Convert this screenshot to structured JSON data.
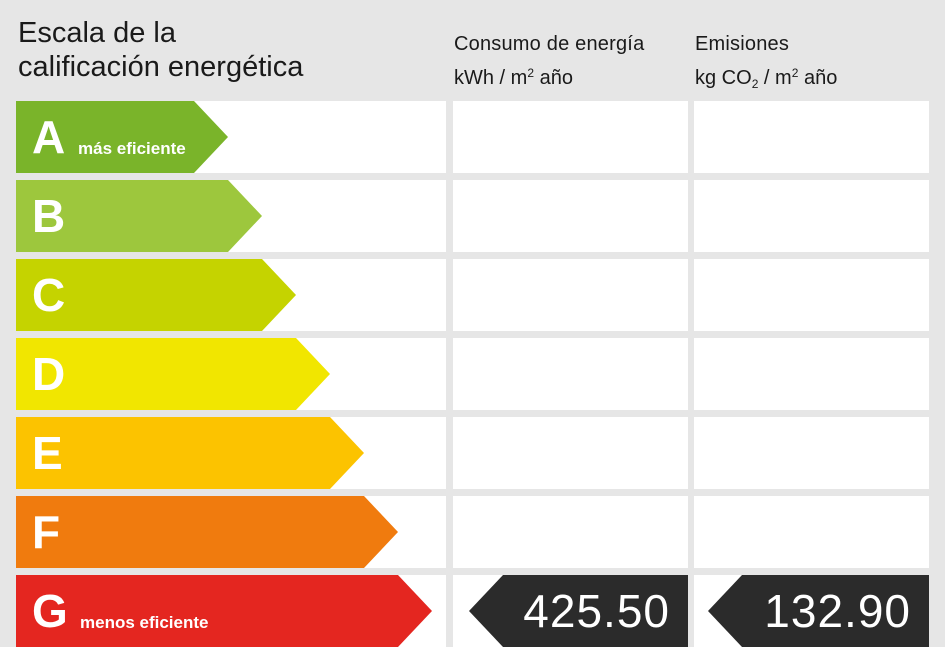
{
  "title": {
    "line1": "Escala de la",
    "line2": "calificación energética"
  },
  "columns": {
    "consumo": {
      "line1": "Consumo de energía",
      "line2_pre": "kWh / m",
      "line2_sup": "2",
      "line2_post": " año"
    },
    "emisiones": {
      "line1": "Emisiones",
      "line2_pre": "kg CO",
      "line2_sub": "2",
      "line2_mid": " / m",
      "line2_sup": "2",
      "line2_post": " año"
    }
  },
  "rating": {
    "selected": "G",
    "consumo_value": "425.50",
    "emisiones_value": "132.90",
    "classes": [
      {
        "letter": "A",
        "note": "más eficiente",
        "color": "#7ab42a"
      },
      {
        "letter": "B",
        "note": "",
        "color": "#9dc73d"
      },
      {
        "letter": "C",
        "note": "",
        "color": "#c5d300"
      },
      {
        "letter": "D",
        "note": "",
        "color": "#f1e600"
      },
      {
        "letter": "E",
        "note": "",
        "color": "#fcc300"
      },
      {
        "letter": "F",
        "note": "",
        "color": "#f07b0e"
      },
      {
        "letter": "G",
        "note": "menos eficiente",
        "color": "#e42620"
      }
    ]
  }
}
